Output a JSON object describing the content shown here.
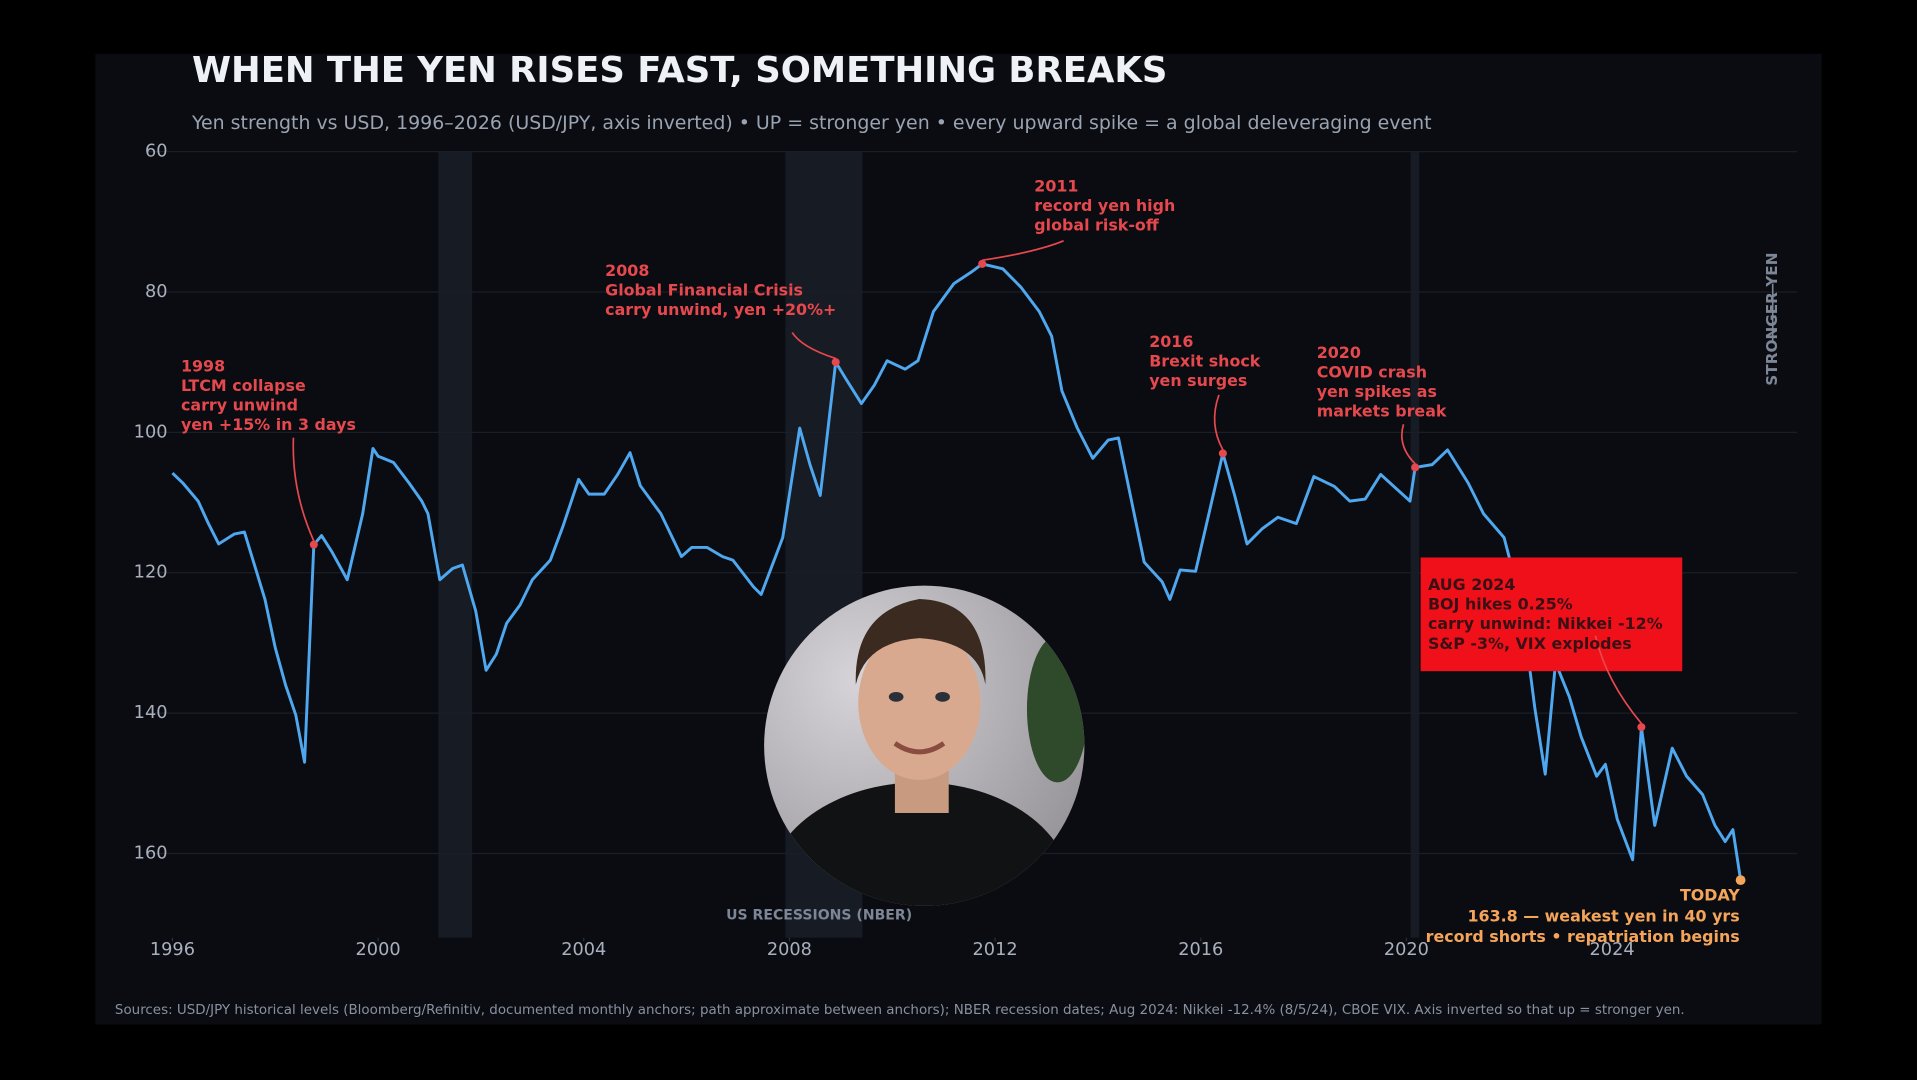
{
  "chart_data": {
    "type": "line",
    "title": "WHEN THE YEN RISES FAST, SOMETHING BREAKS",
    "subtitle": "Yen strength vs USD, 1996–2026 (USD/JPY, axis inverted)  •  UP = stronger yen  •  every upward spike = a global deleveraging event",
    "y_axis_label": "STRONGER YEN",
    "recession_label": "US RECESSIONS (NBER)",
    "footnote": "Sources: USD/JPY historical levels (Bloomberg/Refinitiv, documented monthly anchors; path approximate between anchors); NBER recession dates; Aug 2024: Nikkei -12.4% (8/5/24), CBOE VIX.   Axis inverted so that up = stronger yen.",
    "inverted_y": true,
    "grid": true,
    "xlim": [
      1995.5,
      2027.6
    ],
    "ylim": [
      60,
      172
    ],
    "xticks": [
      1996,
      2000,
      2004,
      2008,
      2012,
      2016,
      2020,
      2024
    ],
    "yticks": [
      60,
      80,
      100,
      120,
      140,
      160
    ],
    "recession_color": "#161b24",
    "recessions": [
      [
        2001.17,
        2001.83
      ],
      [
        2007.92,
        2009.42
      ],
      [
        2020.08,
        2020.25
      ]
    ],
    "x": [
      1996.0,
      1996.2,
      1996.5,
      1996.7,
      1996.9,
      1997.2,
      1997.4,
      1997.8,
      1998.0,
      1998.2,
      1998.4,
      1998.57,
      1998.75,
      1998.9,
      1999.1,
      1999.4,
      1999.7,
      1999.9,
      2000.0,
      2000.3,
      2000.6,
      2000.85,
      2000.97,
      2001.2,
      2001.45,
      2001.64,
      2001.9,
      2002.1,
      2002.3,
      2002.5,
      2002.76,
      2003.0,
      2003.35,
      2003.6,
      2003.9,
      2004.1,
      2004.4,
      2004.66,
      2004.9,
      2005.1,
      2005.5,
      2005.9,
      2006.1,
      2006.4,
      2006.7,
      2006.9,
      2007.3,
      2007.45,
      2007.87,
      2008.2,
      2008.4,
      2008.6,
      2008.9,
      2009.1,
      2009.4,
      2009.65,
      2009.9,
      2010.25,
      2010.5,
      2010.8,
      2011.2,
      2011.55,
      2011.75,
      2012.15,
      2012.5,
      2012.86,
      2013.1,
      2013.3,
      2013.6,
      2013.9,
      2014.2,
      2014.4,
      2014.9,
      2015.25,
      2015.4,
      2015.6,
      2015.9,
      2016.43,
      2016.66,
      2016.9,
      2017.2,
      2017.5,
      2017.86,
      2018.2,
      2018.6,
      2018.9,
      2019.2,
      2019.5,
      2019.8,
      2020.07,
      2020.17,
      2020.5,
      2020.8,
      2021.2,
      2021.5,
      2021.9,
      2022.24,
      2022.5,
      2022.7,
      2022.9,
      2023.17,
      2023.4,
      2023.7,
      2023.87,
      2024.1,
      2024.4,
      2024.57,
      2024.83,
      2025.17,
      2025.45,
      2025.76,
      2026.0,
      2026.2,
      2026.35,
      2026.5
    ],
    "series": [
      {
        "name": "USD/JPY",
        "color": "#4fa8ef",
        "values": [
          105.8,
          107.2,
          109.8,
          113,
          115.9,
          114.5,
          114.2,
          123.8,
          130.7,
          136,
          140.3,
          147,
          116,
          114.7,
          117,
          121,
          111.6,
          102.3,
          103.4,
          104.3,
          107.2,
          109.8,
          111.6,
          121,
          119.4,
          118.9,
          125.5,
          133.9,
          131.6,
          127.2,
          124.6,
          121,
          118.2,
          113.3,
          106.7,
          108.8,
          108.8,
          106,
          102.9,
          107.6,
          111.6,
          117.7,
          116.4,
          116.4,
          117.7,
          118.2,
          122,
          123.1,
          115,
          99.4,
          104.6,
          109,
          90,
          92.4,
          95.9,
          93.3,
          89.8,
          91,
          89.8,
          82.8,
          78.8,
          77.1,
          76,
          76.7,
          79.3,
          82.8,
          86.3,
          94.1,
          99.4,
          103.7,
          101.1,
          100.8,
          118.5,
          121.3,
          123.8,
          119.6,
          119.8,
          103,
          109,
          115.9,
          113.7,
          112.1,
          113,
          106.3,
          107.7,
          109.8,
          109.5,
          106,
          108,
          109.8,
          105,
          104.6,
          102.5,
          107.2,
          111.6,
          115,
          124.6,
          139.4,
          148.7,
          132.8,
          137.7,
          143.4,
          149,
          147.3,
          155.1,
          160.9,
          142,
          156,
          145,
          149,
          151.6,
          156,
          158.3,
          156.6,
          163.8
        ]
      }
    ],
    "annotation_color": "#e5484d",
    "annotations": [
      {
        "lines": [
          "1998",
          "LTCM collapse",
          "carry unwind",
          "yen +15% in 3 days"
        ],
        "x": 1998.75,
        "y": 116
      },
      {
        "lines": [
          "2008",
          "Global Financial Crisis",
          "carry unwind, yen +20%+"
        ],
        "x": 2008.9,
        "y": 90
      },
      {
        "lines": [
          "2011",
          "record yen high",
          "global risk-off"
        ],
        "x": 2011.75,
        "y": 76
      },
      {
        "lines": [
          "2016",
          "Brexit shock",
          "yen surges"
        ],
        "x": 2016.43,
        "y": 103
      },
      {
        "lines": [
          "2020",
          "COVID crash",
          "yen spikes as",
          "markets break"
        ],
        "x": 2020.17,
        "y": 105
      },
      {
        "lines": [
          "AUG 2024",
          "BOJ hikes 0.25%",
          "carry unwind: Nikkei -12%",
          "S&P -3%, VIX explodes"
        ],
        "x": 2024.57,
        "y": 142,
        "box_color": "#f0101a",
        "text_color": "#3a1015"
      }
    ],
    "today": {
      "lines": [
        "TODAY",
        "163.8 — weakest yen in 40 yrs",
        "record shorts • repatriation begins"
      ],
      "color": "#f5a55a"
    }
  }
}
